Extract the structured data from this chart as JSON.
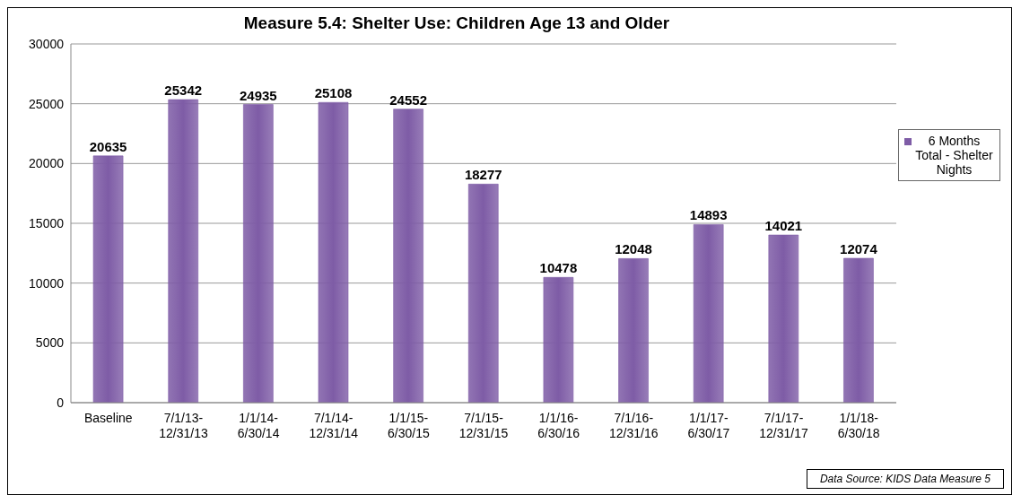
{
  "chart_data": {
    "type": "bar",
    "title": "Measure 5.4: Shelter Use:  Children Age 13 and Older",
    "categories": [
      "Baseline",
      "7/1/13-12/31/13",
      "1/1/14-6/30/14",
      "7/1/14-12/31/14",
      "1/1/15-6/30/15",
      "7/1/15-12/31/15",
      "1/1/16-6/30/16",
      "7/1/16-12/31/16",
      "1/1/17-6/30/17",
      "7/1/17-12/31/17",
      "1/1/18-6/30/18"
    ],
    "series": [
      {
        "name": "6 Months Total - Shelter Nights",
        "color": "#7e5ca6",
        "values": [
          20635,
          25342,
          24935,
          25108,
          24552,
          18277,
          10478,
          12048,
          14893,
          14021,
          12074
        ]
      }
    ],
    "ylim": [
      0,
      30000
    ],
    "yticks": [
      0,
      5000,
      10000,
      15000,
      20000,
      25000,
      30000
    ],
    "grid": "y",
    "legend": "right",
    "data_labels": true,
    "annotations": [
      "Data Source: KIDS Data Measure 5"
    ]
  }
}
